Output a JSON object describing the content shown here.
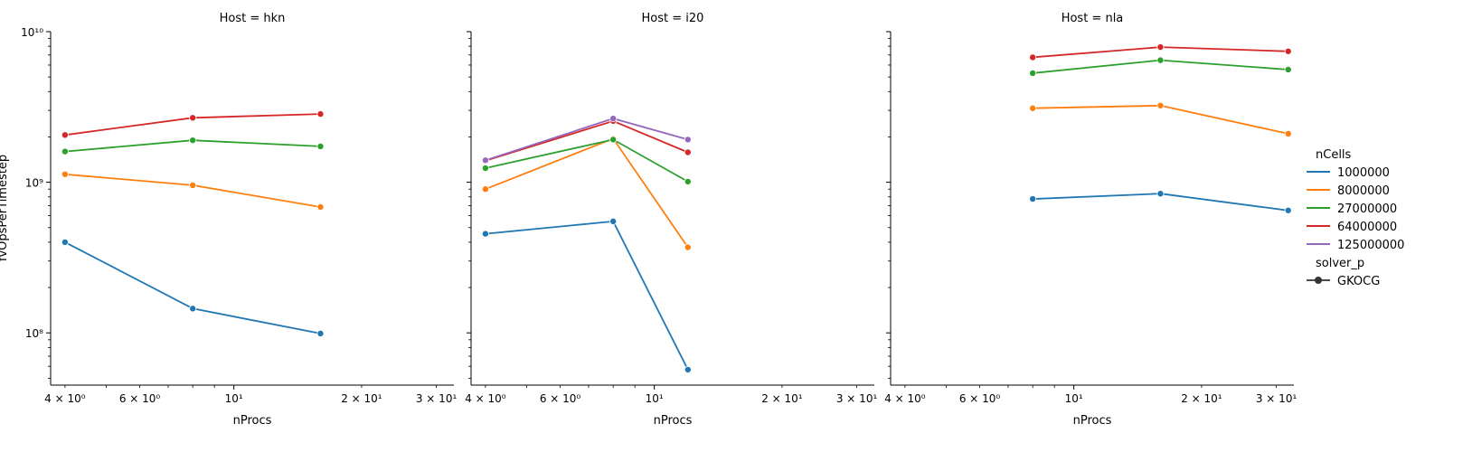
{
  "figure": {
    "ylabel": "fvOpsPerTimestep",
    "legend": {
      "hue_title": "nCells",
      "style_title": "solver_p",
      "style_entries": [
        "GKOCG"
      ]
    }
  },
  "chart_data": [
    {
      "type": "line",
      "title": "Host = hkn",
      "xlabel": "nProcs",
      "ylabel": "fvOpsPerTimestep",
      "x_scale": "log",
      "y_scale": "log",
      "xlim": [
        3.7,
        33
      ],
      "ylim": [
        45000000,
        10000000000
      ],
      "xticks": [
        {
          "value": 4,
          "label": "4 × 10⁰"
        },
        {
          "value": 6,
          "label": "6 × 10⁰"
        },
        {
          "value": 10,
          "label": "10¹"
        },
        {
          "value": 20,
          "label": "2 × 10¹"
        },
        {
          "value": 30,
          "label": "3 × 10¹"
        }
      ],
      "yticks": [
        {
          "value": 100000000,
          "label": "10⁸"
        },
        {
          "value": 1000000000,
          "label": "10⁹"
        },
        {
          "value": 10000000000,
          "label": "10¹⁰"
        }
      ],
      "series": [
        {
          "name": "1000000",
          "color": "#1f77b4",
          "x": [
            4,
            8,
            16
          ],
          "y": [
            400000000,
            145000000,
            99000000
          ]
        },
        {
          "name": "8000000",
          "color": "#ff7f0e",
          "x": [
            4,
            8,
            16
          ],
          "y": [
            1130000000,
            955000000,
            685000000
          ]
        },
        {
          "name": "27000000",
          "color": "#2ca02c",
          "x": [
            4,
            8,
            16
          ],
          "y": [
            1600000000,
            1900000000,
            1730000000
          ]
        },
        {
          "name": "64000000",
          "color": "#d62728",
          "x": [
            4,
            8,
            16
          ],
          "y": [
            2060000000,
            2680000000,
            2840000000
          ]
        }
      ]
    },
    {
      "type": "line",
      "title": "Host = i20",
      "xlabel": "nProcs",
      "ylabel": "",
      "x_scale": "log",
      "y_scale": "log",
      "xlim": [
        3.7,
        33
      ],
      "ylim": [
        45000000,
        10000000000
      ],
      "xticks": [
        {
          "value": 4,
          "label": "4 × 10⁰"
        },
        {
          "value": 6,
          "label": "6 × 10⁰"
        },
        {
          "value": 10,
          "label": "10¹"
        },
        {
          "value": 20,
          "label": "2 × 10¹"
        },
        {
          "value": 30,
          "label": "3 × 10¹"
        }
      ],
      "yticks": [],
      "series": [
        {
          "name": "1000000",
          "color": "#1f77b4",
          "x": [
            4,
            8,
            12
          ],
          "y": [
            455000000,
            550000000,
            57000000
          ]
        },
        {
          "name": "8000000",
          "color": "#ff7f0e",
          "x": [
            4,
            8,
            12
          ],
          "y": [
            900000000,
            1950000000,
            370000000
          ]
        },
        {
          "name": "27000000",
          "color": "#2ca02c",
          "x": [
            4,
            8,
            12
          ],
          "y": [
            1240000000,
            1920000000,
            1010000000
          ]
        },
        {
          "name": "64000000",
          "color": "#d62728",
          "x": [
            4,
            8,
            12
          ],
          "y": [
            1390000000,
            2550000000,
            1580000000
          ]
        },
        {
          "name": "125000000",
          "color": "#9467bd",
          "x": [
            4,
            8,
            12
          ],
          "y": [
            1400000000,
            2650000000,
            1920000000
          ]
        }
      ]
    },
    {
      "type": "line",
      "title": "Host = nla",
      "xlabel": "nProcs",
      "ylabel": "",
      "x_scale": "log",
      "y_scale": "log",
      "xlim": [
        3.7,
        33
      ],
      "ylim": [
        45000000,
        10000000000
      ],
      "xticks": [
        {
          "value": 4,
          "label": "4 × 10⁰"
        },
        {
          "value": 6,
          "label": "6 × 10⁰"
        },
        {
          "value": 10,
          "label": "10¹"
        },
        {
          "value": 20,
          "label": "2 × 10¹"
        },
        {
          "value": 30,
          "label": "3 × 10¹"
        }
      ],
      "yticks": [],
      "series": [
        {
          "name": "1000000",
          "color": "#1f77b4",
          "x": [
            8,
            16,
            32
          ],
          "y": [
            775000000,
            840000000,
            650000000
          ]
        },
        {
          "name": "8000000",
          "color": "#ff7f0e",
          "x": [
            8,
            16,
            32
          ],
          "y": [
            3100000000,
            3230000000,
            2100000000
          ]
        },
        {
          "name": "27000000",
          "color": "#2ca02c",
          "x": [
            8,
            16,
            32
          ],
          "y": [
            5300000000,
            6460000000,
            5600000000
          ]
        },
        {
          "name": "64000000",
          "color": "#d62728",
          "x": [
            8,
            16,
            32
          ],
          "y": [
            6750000000,
            7900000000,
            7400000000
          ]
        }
      ]
    }
  ]
}
